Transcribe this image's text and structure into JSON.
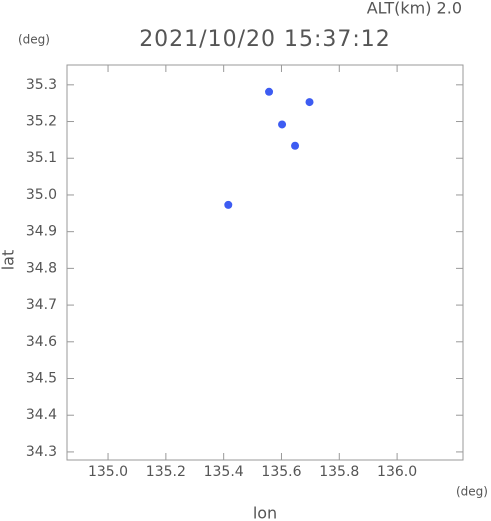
{
  "chart_data": {
    "type": "scatter",
    "title": "2021/10/20 15:37:12",
    "subtitle": "ALT(km) 2.0",
    "x_label": "lon",
    "y_label": "lat",
    "x_unit": "(deg)",
    "y_unit": "(deg)",
    "color": "#3d5cf2",
    "x": [
      135.557,
      135.697,
      135.602,
      135.647,
      135.416
    ],
    "values": [
      35.281,
      35.253,
      35.192,
      35.134,
      34.973
    ],
    "xlim": [
      134.858,
      136.228
    ],
    "ylim": [
      34.278,
      35.354
    ],
    "xticks": [
      {
        "value": 135.0,
        "label": "135.0"
      },
      135.2,
      135.4,
      135.6,
      135.8,
      {
        "value": 136.0,
        "label": "136.0"
      }
    ],
    "yticks": [
      34.3,
      34.4,
      34.5,
      34.6,
      34.7,
      34.8,
      34.9,
      {
        "value": 35.0,
        "label": "35.0"
      },
      35.1,
      35.2,
      35.3
    ]
  }
}
